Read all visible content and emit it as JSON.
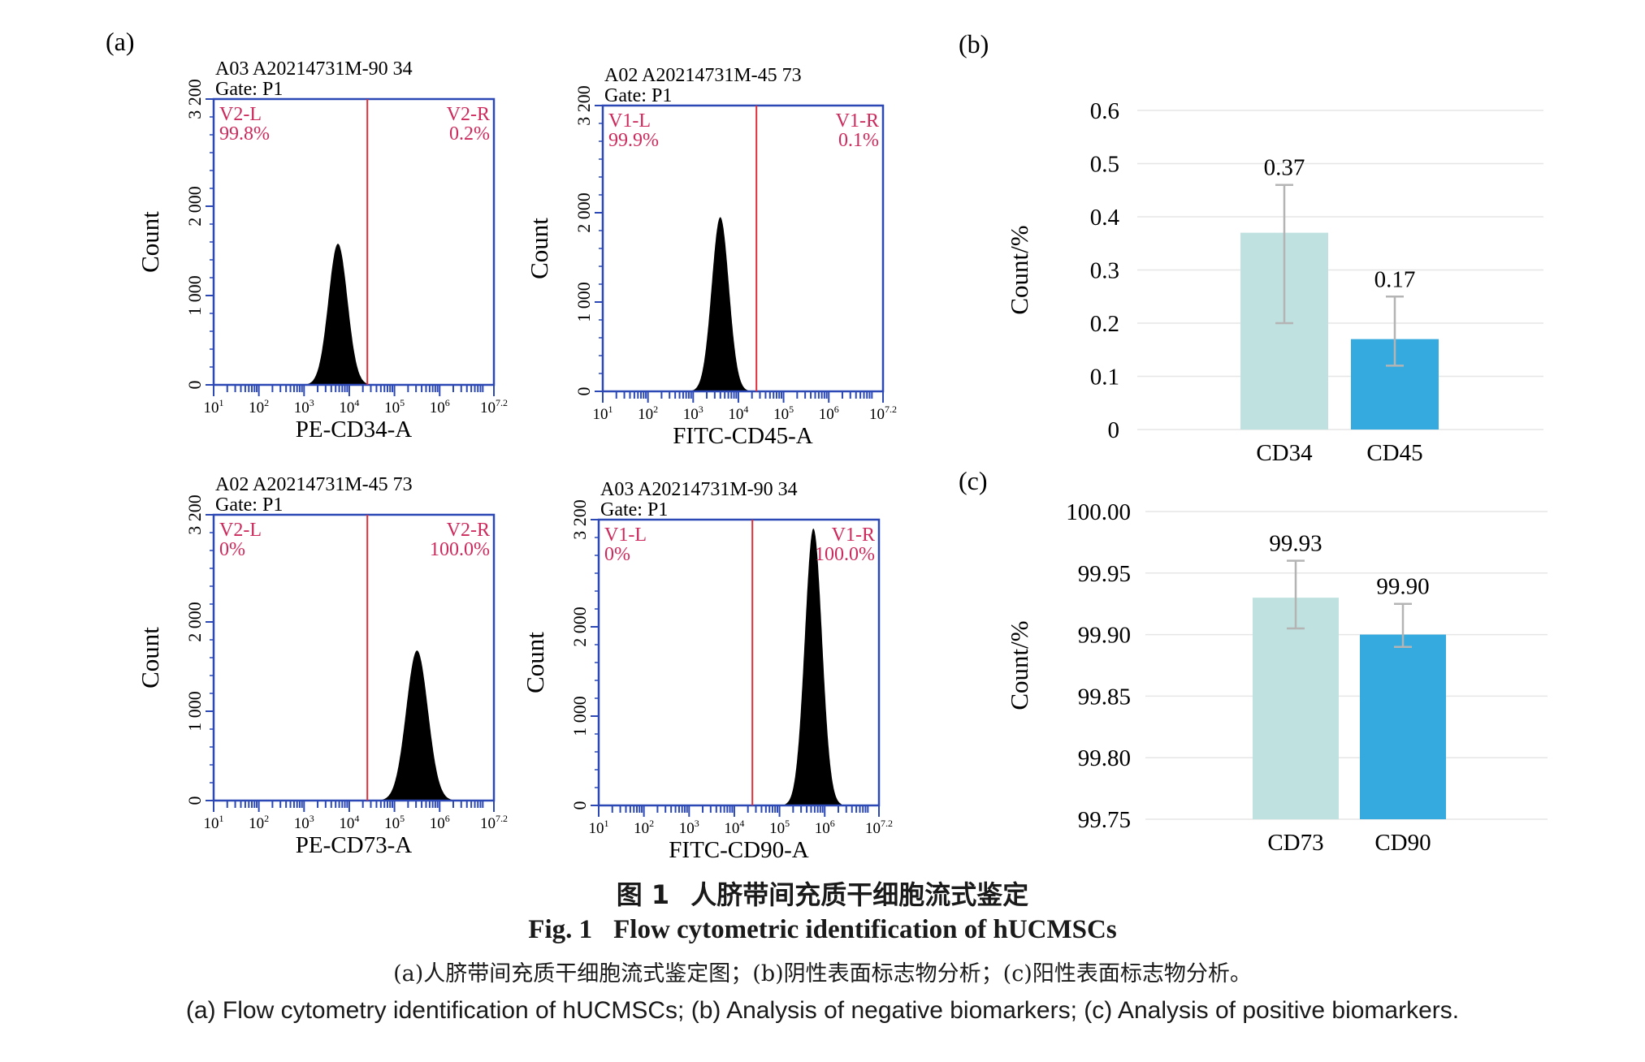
{
  "panel_labels": {
    "a": "(a)",
    "b": "(b)",
    "c": "(c)"
  },
  "histograms": [
    {
      "header": "A03 A20214731M-90 34",
      "gate": "Gate: P1",
      "xlabel": "PE-CD34-A",
      "ylabel": "Count",
      "left_gate": "V2-L",
      "left_pct": "99.8%",
      "right_gate": "V2-R",
      "right_pct": "0.2%",
      "peak_log": 3.75,
      "peak_count": 1580,
      "width_log": 0.21
    },
    {
      "header": "A02 A20214731M-45 73",
      "gate": "Gate: P1",
      "xlabel": "FITC-CD45-A",
      "ylabel": "Count",
      "left_gate": "V1-L",
      "left_pct": "99.9%",
      "right_gate": "V1-R",
      "right_pct": "0.1%",
      "peak_log": 3.6,
      "peak_count": 1950,
      "width_log": 0.19
    },
    {
      "header": "A02 A20214731M-45 73",
      "gate": "Gate: P1",
      "xlabel": "PE-CD73-A",
      "ylabel": "Count",
      "left_gate": "V2-L",
      "left_pct": "0%",
      "right_gate": "V2-R",
      "right_pct": "100.0%",
      "peak_log": 5.5,
      "peak_count": 1680,
      "width_log": 0.24
    },
    {
      "header": "A03 A20214731M-90 34",
      "gate": "Gate: P1",
      "xlabel": "FITC-CD90-A",
      "ylabel": "Count",
      "left_gate": "V1-L",
      "left_pct": "0%",
      "right_gate": "V1-R",
      "right_pct": "100.0%",
      "peak_log": 5.75,
      "peak_count": 3100,
      "width_log": 0.19
    }
  ],
  "hist_axes": {
    "x_ticks": [
      {
        "base": "10",
        "exp": "1"
      },
      {
        "base": "10",
        "exp": "2"
      },
      {
        "base": "10",
        "exp": "3"
      },
      {
        "base": "10",
        "exp": "4"
      },
      {
        "base": "10",
        "exp": "5"
      },
      {
        "base": "10",
        "exp": "6"
      },
      {
        "base": "10",
        "exp": "7.2"
      }
    ],
    "x_log_range": [
      1,
      7.2
    ],
    "gate_log": 4.4,
    "y_ticks": [
      "0",
      "1 000",
      "2 000",
      "3 200"
    ],
    "y_tick_values": [
      0,
      1000,
      2000,
      3200
    ],
    "y_max": 3200
  },
  "chart_data": [
    {
      "type": "bar",
      "panel": "(b)",
      "categories": [
        "CD34",
        "CD45"
      ],
      "values": [
        0.37,
        0.17
      ],
      "value_labels": [
        "0.37",
        "0.17"
      ],
      "error_low": [
        0.2,
        0.12
      ],
      "error_high": [
        0.46,
        0.25
      ],
      "ylabel": "Count/%",
      "ylim": [
        0,
        0.6
      ],
      "y_ticks": [
        "0",
        "0.1",
        "0.2",
        "0.3",
        "0.4",
        "0.5",
        "0.6"
      ],
      "y_tick_values": [
        0,
        0.1,
        0.2,
        0.3,
        0.4,
        0.5,
        0.6
      ],
      "grid": true,
      "colors": [
        "#bfe2e1",
        "#35aadf"
      ]
    },
    {
      "type": "bar",
      "panel": "(c)",
      "categories": [
        "CD73",
        "CD90"
      ],
      "values": [
        99.93,
        99.9
      ],
      "value_labels": [
        "99.93",
        "99.90"
      ],
      "error_low": [
        99.905,
        99.89
      ],
      "error_high": [
        99.96,
        99.925
      ],
      "ylabel": "Count/%",
      "ylim": [
        99.75,
        100.0
      ],
      "y_ticks": [
        "99.75",
        "99.80",
        "99.85",
        "99.90",
        "99.95",
        "100.00"
      ],
      "y_tick_values": [
        99.75,
        99.8,
        99.85,
        99.9,
        99.95,
        100.0
      ],
      "grid": true,
      "colors": [
        "#bfe2e1",
        "#35aadf"
      ]
    }
  ],
  "colors": {
    "axis_blue": "#2b48b5",
    "gate_red": "#e0303a",
    "label_magenta": "#cc2a5c",
    "error_bar": "#b4b4b4",
    "grid": "#e6e6e6"
  },
  "caption": {
    "cn_title_num": "图 1",
    "cn_title": "人脐带间充质干细胞流式鉴定",
    "en_title_num": "Fig. 1",
    "en_title": "Flow cytometric identification of hUCMSCs",
    "cn_desc": "(a)人脐带间充质干细胞流式鉴定图；(b)阴性表面标志物分析；(c)阳性表面标志物分析。",
    "en_desc": "(a) Flow cytometry identification of hUCMSCs; (b) Analysis of negative biomarkers; (c) Analysis of positive biomarkers."
  }
}
